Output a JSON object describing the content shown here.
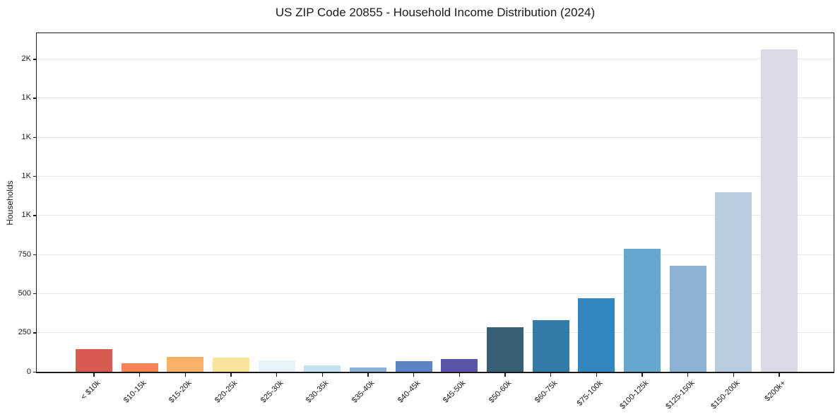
{
  "title": "US ZIP Code 20855 - Household Income Distribution (2024)",
  "chart_data": {
    "type": "bar",
    "title": "US ZIP Code 20855 - Household Income Distribution (2024)",
    "xlabel": "",
    "ylabel": "Households",
    "categories": [
      "< $10k",
      "$10-15k",
      "$15-20k",
      "$20-25k",
      "$25-30k",
      "$30-35k",
      "$35-40k",
      "$40-45k",
      "$45-50k",
      "$50-60k",
      "$60-75k",
      "$75-100k",
      "$100-125k",
      "$125-150k",
      "$150-200k",
      "$200k+"
    ],
    "values": [
      145,
      54,
      94,
      90,
      72,
      40,
      29,
      66,
      82,
      284,
      329,
      470,
      785,
      676,
      1150,
      2060
    ],
    "bar_colors": [
      "#d65c52",
      "#f38558",
      "#fab167",
      "#fce39c",
      "#e6f4fa",
      "#c2e3f0",
      "#89b1d5",
      "#5c83c3",
      "#5a54a8",
      "#356076",
      "#337ba8",
      "#3285bd",
      "#64a7cf",
      "#8cb1d3",
      "#bacce0",
      "#d9dae6"
    ],
    "ylim": [
      0,
      2165
    ],
    "yticks": [
      {
        "value": 0,
        "label": "0"
      },
      {
        "value": 250,
        "label": "250"
      },
      {
        "value": 500,
        "label": "500"
      },
      {
        "value": 750,
        "label": "750"
      },
      {
        "value": 1000,
        "label": "1K"
      },
      {
        "value": 1250,
        "label": "1K"
      },
      {
        "value": 1500,
        "label": "1K"
      },
      {
        "value": 1750,
        "label": "1K"
      },
      {
        "value": 2000,
        "label": "2K"
      }
    ],
    "grid": "horizontal",
    "legend": "none",
    "x_tick_rotation": 45,
    "colors": {
      "background": "#ffffff",
      "spine": "#1a1a1a",
      "gridline": "#e8e8e8",
      "text": "#1a1a1a"
    }
  }
}
